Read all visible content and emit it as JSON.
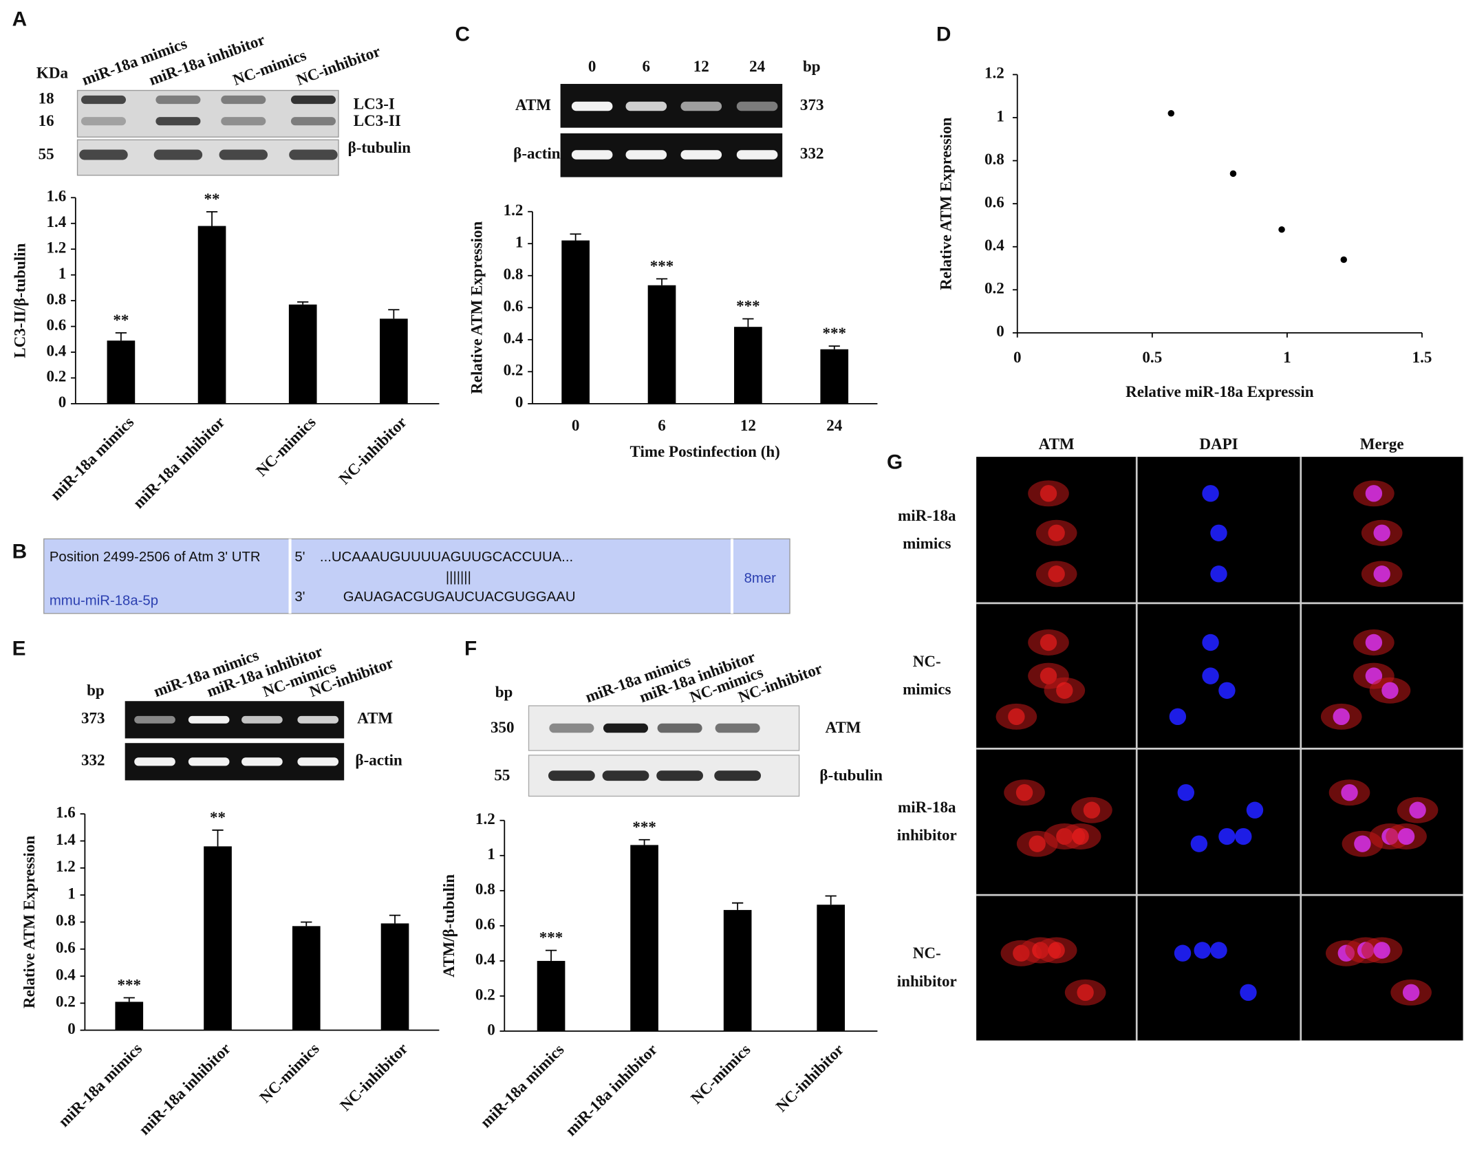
{
  "panel_labels": [
    "A",
    "B",
    "C",
    "D",
    "E",
    "F",
    "G"
  ],
  "chart_data": [
    {
      "type": "bar",
      "categories": [
        "miR-18a mimics",
        "miR-18a inhibitor",
        "NC-mimics",
        "NC-inhibitor"
      ],
      "values": [
        0.49,
        1.38,
        0.77,
        0.66
      ],
      "errors": [
        0.06,
        0.11,
        0.02,
        0.07
      ],
      "annotations": [
        "**",
        "**",
        null,
        null
      ],
      "y_label": "LC3-II/β-tubulin",
      "ylim": [
        0,
        1.6
      ],
      "yticks": [
        0,
        0.2,
        0.4,
        0.6,
        0.8,
        1,
        1.2,
        1.4,
        1.6
      ],
      "color": "#000000",
      "rotate_x": true
    },
    {
      "type": "bar",
      "categories": [
        "0",
        "6",
        "12",
        "24"
      ],
      "values": [
        1.02,
        0.74,
        0.48,
        0.34
      ],
      "errors": [
        0.04,
        0.04,
        0.05,
        0.02
      ],
      "annotations": [
        null,
        "***",
        "***",
        "***"
      ],
      "x_label": "Time Postinfection (h)",
      "y_label": "Relative ATM Expression",
      "ylim": [
        0,
        1.2
      ],
      "yticks": [
        0,
        0.2,
        0.4,
        0.6,
        0.8,
        1,
        1.2
      ],
      "color": "#000000",
      "rotate_x": false
    },
    {
      "type": "scatter",
      "x": [
        0.57,
        0.8,
        0.98,
        1.21
      ],
      "y": [
        1.02,
        0.74,
        0.48,
        0.34
      ],
      "x_label": "Relative miR-18a Expressin",
      "y_label": "Relative ATM Expression",
      "xlim": [
        0,
        1.5
      ],
      "xticks": [
        0,
        0.5,
        1,
        1.5
      ],
      "ylim": [
        0,
        1.2
      ],
      "yticks": [
        0,
        0.2,
        0.4,
        0.6,
        0.8,
        1,
        1.2
      ],
      "color": "#000000"
    },
    {
      "type": "bar",
      "categories": [
        "miR-18a mimics",
        "miR-18a inhibitor",
        "NC-mimics",
        "NC-inhibitor"
      ],
      "values": [
        0.21,
        1.36,
        0.77,
        0.79
      ],
      "errors": [
        0.03,
        0.12,
        0.03,
        0.06
      ],
      "annotations": [
        "***",
        "**",
        null,
        null
      ],
      "y_label": "Relative ATM Expression",
      "ylim": [
        0,
        1.6
      ],
      "yticks": [
        0,
        0.2,
        0.4,
        0.6,
        0.8,
        1,
        1.2,
        1.4,
        1.6
      ],
      "color": "#000000",
      "rotate_x": true
    },
    {
      "type": "bar",
      "categories": [
        "miR-18a mimics",
        "miR-18a inhibitor",
        "NC-mimics",
        "NC-inhibitor"
      ],
      "values": [
        0.4,
        1.06,
        0.69,
        0.72
      ],
      "errors": [
        0.06,
        0.03,
        0.04,
        0.05
      ],
      "annotations": [
        "***",
        "***",
        null,
        null
      ],
      "y_label": "ATM/β-tubulin",
      "ylim": [
        0,
        1.2
      ],
      "yticks": [
        0,
        0.2,
        0.4,
        0.6,
        0.8,
        1,
        1.2
      ],
      "color": "#000000",
      "rotate_x": true
    }
  ],
  "blots": {
    "A": {
      "unit": "KDa",
      "lanes": [
        "miR-18a mimics",
        "miR-18a inhibitor",
        "NC-mimics",
        "NC-inhibitor"
      ],
      "markers": [
        "18",
        "16",
        "55"
      ],
      "bands": [
        "LC3-I",
        "LC3-II",
        "β-tubulin"
      ]
    },
    "C": {
      "unit": "bp",
      "lanes": [
        "0",
        "6",
        "12",
        "24"
      ],
      "bands": [
        "ATM",
        "β-actin"
      ],
      "sizes": [
        "373",
        "332"
      ]
    },
    "E": {
      "unit": "bp",
      "lanes": [
        "miR-18a mimics",
        "miR-18a inhibitor",
        "NC-mimics",
        "NC-inhibitor"
      ],
      "sizes": [
        "373",
        "332"
      ],
      "bands": [
        "ATM",
        "β-actin"
      ]
    },
    "F": {
      "unit": "bp",
      "lanes": [
        "miR-18a mimics",
        "miR-18a inhibitor",
        "NC-mimics",
        "NC-inhibitor"
      ],
      "sizes": [
        "350",
        "55"
      ],
      "bands": [
        "ATM",
        "β-tubulin"
      ]
    }
  },
  "alignment": {
    "target": "Position 2499-2506 of Atm 3' UTR",
    "target_end": "5'",
    "target_seq": "...UCAAAUGUUUUAGUUGCACCUUA...",
    "pairing": "|||||||",
    "mirna": "mmu-miR-18a-5p",
    "mirna_end": "3'",
    "mirna_seq": "GAUAGACGUGAUCUACGUGGAAU",
    "site_type": "8mer"
  },
  "microscopy": {
    "columns": [
      "ATM",
      "DAPI",
      "Merge"
    ],
    "rows": [
      [
        "miR-18a",
        "mimics"
      ],
      [
        "NC-",
        "mimics"
      ],
      [
        "miR-18a",
        "inhibitor"
      ],
      [
        "NC-",
        "inhibitor"
      ]
    ]
  }
}
